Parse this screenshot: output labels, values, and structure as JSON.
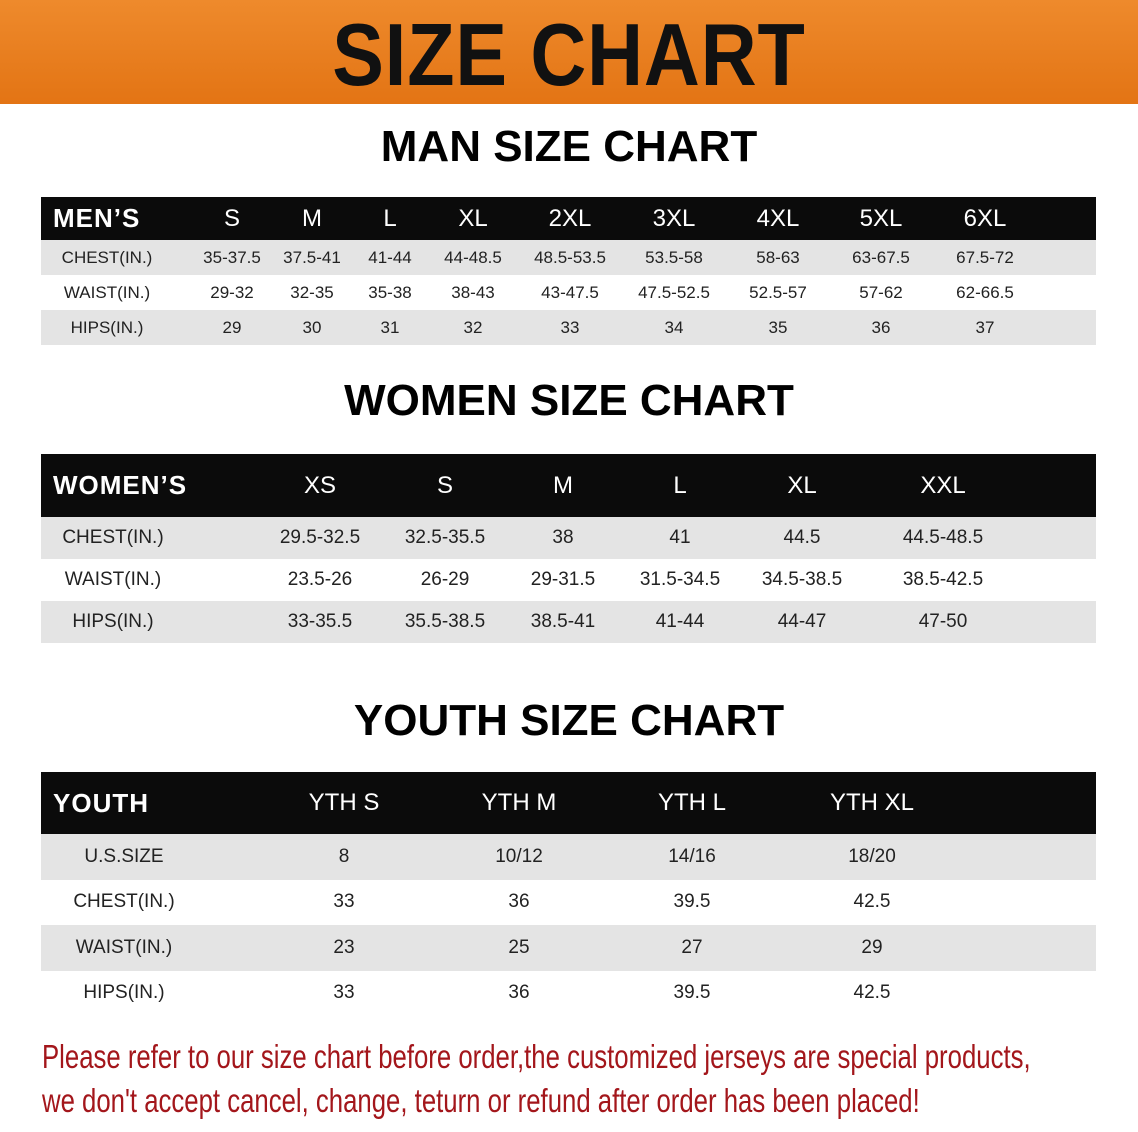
{
  "banner": {
    "title": "SIZE CHART",
    "color": "#e87a1c"
  },
  "men": {
    "title": "MAN SIZE CHART",
    "header": [
      "MEN’S",
      "S",
      "M",
      "L",
      "XL",
      "2XL",
      "3XL",
      "4XL",
      "5XL",
      "6XL"
    ],
    "rows": [
      [
        "CHEST(IN.)",
        "35-37.5",
        "37.5-41",
        "41-44",
        "44-48.5",
        "48.5-53.5",
        "53.5-58",
        "58-63",
        "63-67.5",
        "67.5-72"
      ],
      [
        "WAIST(IN.)",
        "29-32",
        "32-35",
        "35-38",
        "38-43",
        "43-47.5",
        "47.5-52.5",
        "52.5-57",
        "57-62",
        "62-66.5"
      ],
      [
        "HIPS(IN.)",
        "29",
        "30",
        "31",
        "32",
        "33",
        "34",
        "35",
        "36",
        "37"
      ]
    ]
  },
  "women": {
    "title": "WOMEN SIZE CHART",
    "header": [
      "WOMEN’S",
      "XS",
      "S",
      "M",
      "L",
      "XL",
      "XXL"
    ],
    "rows": [
      [
        "CHEST(IN.)",
        "29.5-32.5",
        "32.5-35.5",
        "38",
        "41",
        "44.5",
        "44.5-48.5"
      ],
      [
        "WAIST(IN.)",
        "23.5-26",
        "26-29",
        "29-31.5",
        "31.5-34.5",
        "34.5-38.5",
        "38.5-42.5"
      ],
      [
        "HIPS(IN.)",
        "33-35.5",
        "35.5-38.5",
        "38.5-41",
        "41-44",
        "44-47",
        "47-50"
      ]
    ]
  },
  "youth": {
    "title": "YOUTH SIZE CHART",
    "header": [
      "YOUTH",
      "YTH S",
      "YTH M",
      "YTH L",
      "YTH XL"
    ],
    "rows": [
      [
        "U.S.SIZE",
        "8",
        "10/12",
        "14/16",
        "18/20"
      ],
      [
        "CHEST(IN.)",
        "33",
        "36",
        "39.5",
        "42.5"
      ],
      [
        "WAIST(IN.)",
        "23",
        "25",
        "27",
        "29"
      ],
      [
        "HIPS(IN.)",
        "33",
        "36",
        "39.5",
        "42.5"
      ]
    ]
  },
  "notice": {
    "line1": "Please refer to our size chart before order,the customized jerseys are special products,",
    "line2": "we don't accept cancel, change, teturn or refund after order has been placed!",
    "color": "#a3161b"
  }
}
